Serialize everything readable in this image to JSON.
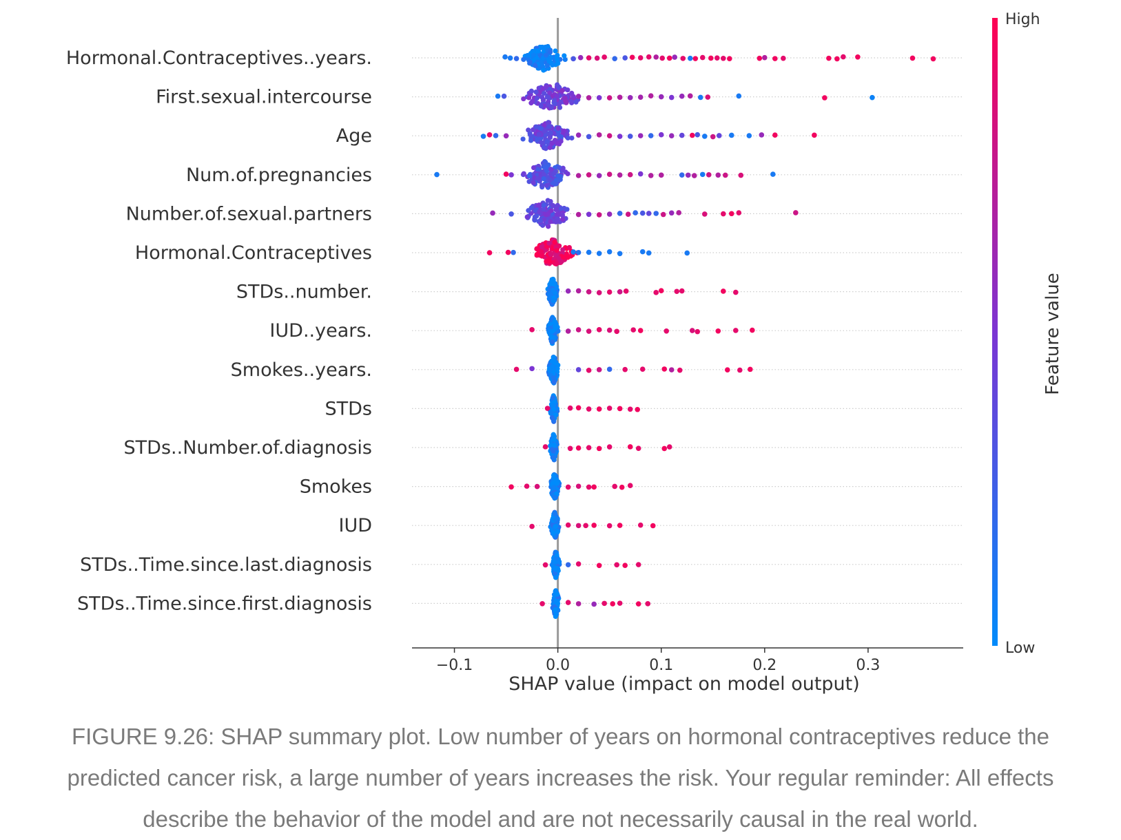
{
  "chart_data": {
    "type": "scatter",
    "subtype": "beeswarm",
    "xlabel": "SHAP value (impact on model output)",
    "xlim": [
      -0.141,
      0.392
    ],
    "xticks": [
      -0.1,
      0.0,
      0.1,
      0.2,
      0.3
    ],
    "xtick_labels": [
      "−0.1",
      "0.0",
      "0.1",
      "0.2",
      "0.3"
    ],
    "zero_line": 0.0,
    "colorbar": {
      "label": "Feature value",
      "high_label": "High",
      "low_label": "Low",
      "high_color": "#ff0052",
      "mid_color": "#7c35d3",
      "low_color": "#008bfb"
    },
    "features": [
      {
        "name": "Hormonal.Contraceptives..years.",
        "core": {
          "center": -0.013,
          "spread": 0.024,
          "color": 0.05
        },
        "points": [
          [
            -0.051,
            0.1
          ],
          [
            -0.046,
            0.1
          ],
          [
            -0.04,
            0.2
          ],
          [
            0.015,
            0.3
          ],
          [
            0.022,
            0.6
          ],
          [
            0.03,
            0.9
          ],
          [
            0.038,
            0.85
          ],
          [
            0.045,
            0.9
          ],
          [
            0.055,
            0.2
          ],
          [
            0.065,
            0.3
          ],
          [
            0.072,
            0.95
          ],
          [
            0.08,
            0.9
          ],
          [
            0.088,
            0.9
          ],
          [
            0.095,
            0.7
          ],
          [
            0.101,
            0.9
          ],
          [
            0.108,
            0.95
          ],
          [
            0.113,
            0.6
          ],
          [
            0.121,
            0.9
          ],
          [
            0.128,
            0.1
          ],
          [
            0.133,
            0.95
          ],
          [
            0.14,
            0.9
          ],
          [
            0.148,
            0.95
          ],
          [
            0.154,
            0.9
          ],
          [
            0.16,
            0.9
          ],
          [
            0.166,
            0.95
          ],
          [
            0.195,
            0.95
          ],
          [
            0.2,
            0.7
          ],
          [
            0.21,
            0.95
          ],
          [
            0.218,
            0.9
          ],
          [
            0.262,
            0.95
          ],
          [
            0.27,
            0.95
          ],
          [
            0.276,
            0.9
          ],
          [
            0.29,
            0.95
          ],
          [
            0.343,
            0.95
          ],
          [
            0.363,
            0.95
          ]
        ]
      },
      {
        "name": "First.sexual.intercourse",
        "core": {
          "center": -0.005,
          "spread": 0.035,
          "color": 0.45
        },
        "points": [
          [
            -0.058,
            0.1
          ],
          [
            -0.052,
            0.3
          ],
          [
            0.02,
            0.6
          ],
          [
            0.03,
            0.7
          ],
          [
            0.04,
            0.5
          ],
          [
            0.05,
            0.8
          ],
          [
            0.06,
            0.7
          ],
          [
            0.07,
            0.6
          ],
          [
            0.08,
            0.65
          ],
          [
            0.09,
            0.7
          ],
          [
            0.1,
            0.6
          ],
          [
            0.11,
            0.5
          ],
          [
            0.12,
            0.6
          ],
          [
            0.128,
            0.7
          ],
          [
            0.138,
            0.1
          ],
          [
            0.145,
            0.85
          ],
          [
            0.175,
            0.1
          ],
          [
            0.258,
            0.95
          ],
          [
            0.304,
            0.05
          ]
        ]
      },
      {
        "name": "Age",
        "core": {
          "center": -0.01,
          "spread": 0.03,
          "color": 0.4
        },
        "points": [
          [
            -0.072,
            0.1
          ],
          [
            -0.066,
            0.9
          ],
          [
            -0.06,
            0.2
          ],
          [
            -0.05,
            0.6
          ],
          [
            0.02,
            0.6
          ],
          [
            0.03,
            0.3
          ],
          [
            0.04,
            0.7
          ],
          [
            0.05,
            0.8
          ],
          [
            0.06,
            0.5
          ],
          [
            0.07,
            0.3
          ],
          [
            0.08,
            0.6
          ],
          [
            0.09,
            0.2
          ],
          [
            0.1,
            0.5
          ],
          [
            0.11,
            0.6
          ],
          [
            0.12,
            0.4
          ],
          [
            0.13,
            0.95
          ],
          [
            0.135,
            0.3
          ],
          [
            0.142,
            0.1
          ],
          [
            0.15,
            0.8
          ],
          [
            0.156,
            0.4
          ],
          [
            0.168,
            0.1
          ],
          [
            0.185,
            0.1
          ],
          [
            0.197,
            0.6
          ],
          [
            0.21,
            0.95
          ],
          [
            0.248,
            0.95
          ]
        ]
      },
      {
        "name": "Num.of.pregnancies",
        "core": {
          "center": -0.012,
          "spread": 0.03,
          "color": 0.35
        },
        "points": [
          [
            -0.117,
            0.1
          ],
          [
            -0.05,
            0.95
          ],
          [
            -0.045,
            0.5
          ],
          [
            0.02,
            0.7
          ],
          [
            0.03,
            0.8
          ],
          [
            0.04,
            0.6
          ],
          [
            0.05,
            0.8
          ],
          [
            0.06,
            0.7
          ],
          [
            0.07,
            0.8
          ],
          [
            0.08,
            0.5
          ],
          [
            0.09,
            0.7
          ],
          [
            0.1,
            0.7
          ],
          [
            0.12,
            0.2
          ],
          [
            0.126,
            0.6
          ],
          [
            0.132,
            0.7
          ],
          [
            0.14,
            0.1
          ],
          [
            0.146,
            0.8
          ],
          [
            0.155,
            0.7
          ],
          [
            0.162,
            0.8
          ],
          [
            0.177,
            0.85
          ],
          [
            0.208,
            0.1
          ]
        ]
      },
      {
        "name": "Number.of.sexual.partners",
        "core": {
          "center": -0.01,
          "spread": 0.028,
          "color": 0.4
        },
        "points": [
          [
            -0.063,
            0.6
          ],
          [
            -0.045,
            0.3
          ],
          [
            0.02,
            0.7
          ],
          [
            0.03,
            0.5
          ],
          [
            0.04,
            0.8
          ],
          [
            0.05,
            0.6
          ],
          [
            0.06,
            0.2
          ],
          [
            0.068,
            0.8
          ],
          [
            0.075,
            0.2
          ],
          [
            0.082,
            0.3
          ],
          [
            0.088,
            0.4
          ],
          [
            0.095,
            0.2
          ],
          [
            0.102,
            0.8
          ],
          [
            0.11,
            0.6
          ],
          [
            0.117,
            0.7
          ],
          [
            0.142,
            0.85
          ],
          [
            0.16,
            0.9
          ],
          [
            0.168,
            0.95
          ],
          [
            0.175,
            0.9
          ],
          [
            0.23,
            0.8
          ]
        ]
      },
      {
        "name": "Hormonal.Contraceptives",
        "core": {
          "center": -0.005,
          "spread": 0.025,
          "color": 0.92
        },
        "points": [
          [
            -0.066,
            0.95
          ],
          [
            -0.048,
            0.95
          ],
          [
            -0.043,
            0.2
          ],
          [
            0.015,
            0.1
          ],
          [
            0.02,
            0.15
          ],
          [
            0.03,
            0.1
          ],
          [
            0.04,
            0.1
          ],
          [
            0.05,
            0.1
          ],
          [
            0.06,
            0.1
          ],
          [
            0.082,
            0.1
          ],
          [
            0.088,
            0.1
          ],
          [
            0.125,
            0.1
          ]
        ]
      },
      {
        "name": "STDs..number.",
        "core": {
          "center": -0.005,
          "spread": 0.006,
          "color": 0.05
        },
        "points": [
          [
            0.01,
            0.6
          ],
          [
            0.02,
            0.7
          ],
          [
            0.03,
            0.8
          ],
          [
            0.04,
            0.85
          ],
          [
            0.05,
            0.9
          ],
          [
            0.06,
            0.8
          ],
          [
            0.066,
            0.9
          ],
          [
            0.095,
            0.9
          ],
          [
            0.1,
            0.95
          ],
          [
            0.115,
            0.9
          ],
          [
            0.12,
            0.9
          ],
          [
            0.16,
            0.95
          ],
          [
            0.172,
            0.9
          ]
        ]
      },
      {
        "name": "IUD..years.",
        "core": {
          "center": -0.005,
          "spread": 0.006,
          "color": 0.05
        },
        "points": [
          [
            -0.025,
            0.9
          ],
          [
            0.01,
            0.7
          ],
          [
            0.02,
            0.8
          ],
          [
            0.03,
            0.85
          ],
          [
            0.04,
            0.9
          ],
          [
            0.05,
            0.85
          ],
          [
            0.057,
            0.9
          ],
          [
            0.073,
            0.9
          ],
          [
            0.08,
            0.95
          ],
          [
            0.105,
            0.9
          ],
          [
            0.13,
            0.85
          ],
          [
            0.135,
            0.9
          ],
          [
            0.155,
            0.95
          ],
          [
            0.172,
            0.9
          ],
          [
            0.188,
            0.95
          ]
        ]
      },
      {
        "name": "Smokes..years.",
        "core": {
          "center": -0.004,
          "spread": 0.006,
          "color": 0.05
        },
        "points": [
          [
            -0.04,
            0.9
          ],
          [
            -0.025,
            0.5
          ],
          [
            0.02,
            0.4
          ],
          [
            0.03,
            0.9
          ],
          [
            0.04,
            0.8
          ],
          [
            0.05,
            0.2
          ],
          [
            0.065,
            0.9
          ],
          [
            0.082,
            0.9
          ],
          [
            0.103,
            0.95
          ],
          [
            0.11,
            0.7
          ],
          [
            0.118,
            0.9
          ],
          [
            0.164,
            0.95
          ],
          [
            0.176,
            0.9
          ],
          [
            0.186,
            0.95
          ]
        ]
      },
      {
        "name": "STDs",
        "core": {
          "center": -0.004,
          "spread": 0.004,
          "color": 0.05
        },
        "points": [
          [
            -0.01,
            0.9
          ],
          [
            0.012,
            0.9
          ],
          [
            0.02,
            0.95
          ],
          [
            0.03,
            0.9
          ],
          [
            0.04,
            0.95
          ],
          [
            0.05,
            0.9
          ],
          [
            0.06,
            0.95
          ],
          [
            0.07,
            0.9
          ],
          [
            0.077,
            0.95
          ]
        ]
      },
      {
        "name": "STDs..Number.of.diagnosis",
        "core": {
          "center": -0.004,
          "spread": 0.004,
          "color": 0.05
        },
        "points": [
          [
            -0.012,
            0.9
          ],
          [
            0.012,
            0.9
          ],
          [
            0.02,
            0.95
          ],
          [
            0.03,
            0.9
          ],
          [
            0.04,
            0.95
          ],
          [
            0.05,
            0.9
          ],
          [
            0.07,
            0.95
          ],
          [
            0.078,
            0.9
          ],
          [
            0.103,
            0.95
          ],
          [
            0.108,
            0.9
          ]
        ]
      },
      {
        "name": "Smokes",
        "core": {
          "center": -0.003,
          "spread": 0.005,
          "color": 0.05
        },
        "points": [
          [
            -0.045,
            0.95
          ],
          [
            -0.03,
            0.9
          ],
          [
            -0.02,
            0.85
          ],
          [
            0.01,
            0.9
          ],
          [
            0.02,
            0.85
          ],
          [
            0.03,
            0.9
          ],
          [
            0.035,
            0.95
          ],
          [
            0.055,
            0.9
          ],
          [
            0.062,
            0.95
          ],
          [
            0.07,
            0.9
          ]
        ]
      },
      {
        "name": "IUD",
        "core": {
          "center": -0.003,
          "spread": 0.005,
          "color": 0.05
        },
        "points": [
          [
            -0.025,
            0.9
          ],
          [
            0.01,
            0.9
          ],
          [
            0.02,
            0.85
          ],
          [
            0.027,
            0.9
          ],
          [
            0.035,
            0.95
          ],
          [
            0.05,
            0.9
          ],
          [
            0.06,
            0.95
          ],
          [
            0.08,
            0.9
          ],
          [
            0.092,
            0.95
          ]
        ]
      },
      {
        "name": "STDs..Time.since.last.diagnosis",
        "core": {
          "center": -0.002,
          "spread": 0.004,
          "color": 0.05
        },
        "points": [
          [
            -0.012,
            0.9
          ],
          [
            0.01,
            0.2
          ],
          [
            0.02,
            0.9
          ],
          [
            0.04,
            0.95
          ],
          [
            0.057,
            0.9
          ],
          [
            0.065,
            0.95
          ],
          [
            0.078,
            0.9
          ]
        ]
      },
      {
        "name": "STDs..Time.since.first.diagnosis",
        "core": {
          "center": -0.002,
          "spread": 0.004,
          "color": 0.05
        },
        "points": [
          [
            -0.015,
            0.9
          ],
          [
            0.01,
            0.9
          ],
          [
            0.02,
            0.7
          ],
          [
            0.035,
            0.6
          ],
          [
            0.045,
            0.9
          ],
          [
            0.053,
            0.95
          ],
          [
            0.06,
            0.9
          ],
          [
            0.078,
            0.95
          ],
          [
            0.087,
            0.9
          ]
        ]
      }
    ]
  },
  "caption": {
    "lines": [
      "FIGURE 9.26: SHAP summary plot. Low number of years on hormonal contraceptives reduce the",
      "predicted cancer risk, a large number of years increases the risk. Your regular reminder: All effects",
      "describe the behavior of the model and are not necessarily causal in the real world."
    ]
  }
}
